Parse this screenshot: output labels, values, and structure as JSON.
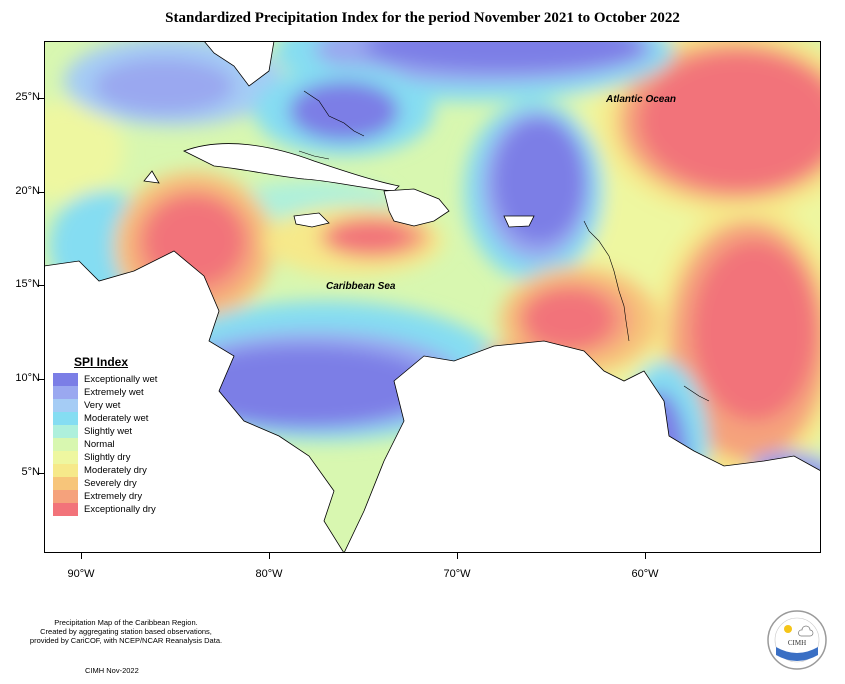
{
  "title": "Standardized Precipitation Index for the period November 2021 to October 2022",
  "map": {
    "ocean_labels": {
      "atlantic": "Atlantic Ocean",
      "caribbean": "Caribbean Sea"
    },
    "lat_labels": [
      "25°N",
      "20°N",
      "15°N",
      "10°N",
      "5°N"
    ],
    "lon_labels": [
      "90°W",
      "80°W",
      "70°W",
      "60°W"
    ]
  },
  "legend": {
    "title": "SPI Index",
    "categories": [
      {
        "label": "Exceptionally wet",
        "color": "#7b7ee6"
      },
      {
        "label": "Extremely wet",
        "color": "#9aa8f0"
      },
      {
        "label": "Very wet",
        "color": "#a5ccf5"
      },
      {
        "label": "Moderately wet",
        "color": "#85ddf2"
      },
      {
        "label": "Slightly wet",
        "color": "#aef0dc"
      },
      {
        "label": "Normal",
        "color": "#d8f7b0"
      },
      {
        "label": "Slightly dry",
        "color": "#eef7a0"
      },
      {
        "label": "Moderately dry",
        "color": "#f6e98a"
      },
      {
        "label": "Severely dry",
        "color": "#f7c57a"
      },
      {
        "label": "Extremely dry",
        "color": "#f5a27c"
      },
      {
        "label": "Exceptionally dry",
        "color": "#f2737a"
      }
    ]
  },
  "footer": {
    "line1": "Precipitation Map of the Caribbean Region.",
    "line2": "Created by aggregating station based observations,",
    "line3": "provided by CariCOF, with NCEP/NCAR Reanalysis Data.",
    "credit": "CIMH Nov-2022"
  },
  "logo": {
    "text": "CIMH"
  }
}
